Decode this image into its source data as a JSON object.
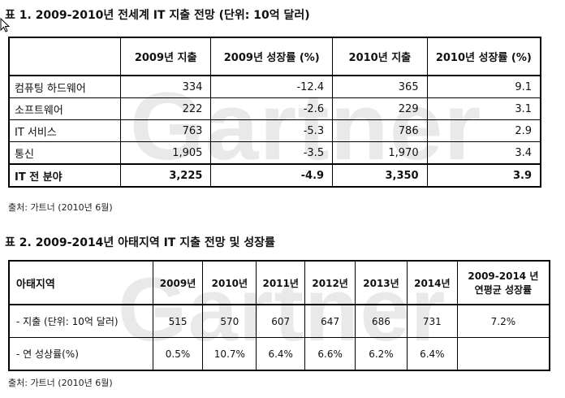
{
  "watermark": "Gartner",
  "table1": {
    "title": "표 1. 2009-2010년 전세계 IT 지출 전망  (단위: 10억 달러)",
    "headers": [
      "",
      "2009년 지출",
      "2009년 성장률 (%)",
      "2010년 지출",
      "2010년 성장률 (%)"
    ],
    "rows": [
      [
        "컴퓨팅 하드웨어",
        "334",
        "-12.4",
        "365",
        "9.1"
      ],
      [
        "소프트웨어",
        "222",
        "-2.6",
        "229",
        "3.1"
      ],
      [
        "IT 서비스",
        "763",
        "-5.3",
        "786",
        "2.9"
      ],
      [
        "통신",
        "1,905",
        "-3.5",
        "1,970",
        "3.4"
      ]
    ],
    "total": [
      "IT 전 분야",
      "3,225",
      "-4.9",
      "3,350",
      "3.9"
    ],
    "source": "출처: 가트너 (2010년 6월)"
  },
  "table2": {
    "title": "표 2. 2009-2014년 아태지역 IT 지출 전망 및 성장률",
    "headers": [
      "아태지역",
      "2009년",
      "2010년",
      "2011년",
      "2012년",
      "2013년",
      "2014년",
      "2009-2014 년",
      "연평균 성장률"
    ],
    "rows": [
      [
        "- 지출 (단위: 10억 달러)",
        "515",
        "570",
        "607",
        "647",
        "686",
        "731",
        "7.2%"
      ],
      [
        "- 연 성상률(%)",
        "0.5%",
        "10.7%",
        "6.4%",
        "6.6%",
        "6.2%",
        "6.4%",
        ""
      ]
    ],
    "source": "출처: 가트너 (2010년 6월)"
  }
}
